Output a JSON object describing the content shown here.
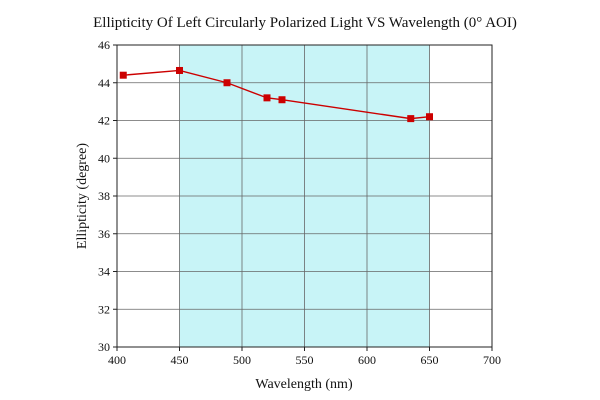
{
  "chart_data": {
    "type": "line",
    "title": "Ellipticity Of Left Circularly Polarized Light  VS Wavelength (0° AOI)",
    "xlabel": "Wavelength (nm)",
    "ylabel": "Ellipticity (degree)",
    "xlim": [
      400,
      700
    ],
    "ylim": [
      30,
      46
    ],
    "xticks": [
      400,
      450,
      500,
      550,
      600,
      650,
      700
    ],
    "yticks": [
      30,
      32,
      34,
      36,
      38,
      40,
      42,
      44,
      46
    ],
    "grid": true,
    "highlight_band": {
      "x_range": [
        450,
        650
      ],
      "color": "#c8f4f7"
    },
    "series": [
      {
        "color": "#cc0000",
        "marker": "square",
        "x": [
          405,
          450,
          488,
          520,
          532,
          635,
          650
        ],
        "y": [
          44.4,
          44.65,
          44.0,
          43.2,
          43.1,
          42.1,
          42.2
        ]
      }
    ]
  }
}
